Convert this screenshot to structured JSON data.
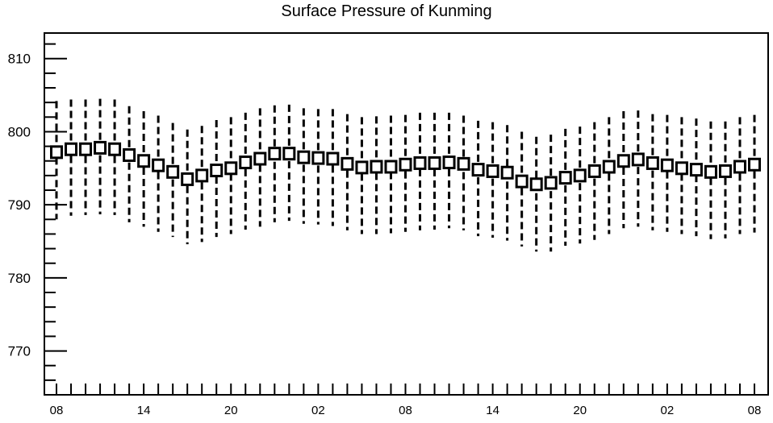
{
  "chart_data": {
    "type": "box",
    "title": "Surface Pressure of Kunming",
    "xlabel": "",
    "ylabel": "",
    "x_tick_labels": [
      "08",
      "14",
      "20",
      "02",
      "08",
      "14",
      "20",
      "02",
      "08"
    ],
    "y_tick_labels": [
      "770",
      "780",
      "790",
      "800",
      "810"
    ],
    "ylim": [
      764,
      813.5
    ],
    "grid": false,
    "series": [
      {
        "median": [
          797.2,
          797.6,
          797.6,
          797.8,
          797.6,
          796.8,
          796.0,
          795.4,
          794.5,
          793.5,
          794.0,
          794.7,
          795.0,
          795.8,
          796.3,
          797.0,
          797.0,
          796.5,
          796.4,
          796.3,
          795.6,
          795.1,
          795.2,
          795.2,
          795.5,
          795.7,
          795.7,
          795.8,
          795.6,
          794.8,
          794.6,
          794.4,
          793.2,
          792.8,
          793.0,
          793.7,
          794.0,
          794.6,
          795.2,
          796.0,
          796.2,
          795.7,
          795.4,
          795.0,
          794.8,
          794.5,
          794.6,
          795.2,
          795.5
        ],
        "whisker_low": [
          788.0,
          788.5,
          788.6,
          788.7,
          788.6,
          787.6,
          787.0,
          786.3,
          785.6,
          784.6,
          784.9,
          785.6,
          786.0,
          786.6,
          787.0,
          787.6,
          787.8,
          787.4,
          787.3,
          787.1,
          786.5,
          786.0,
          786.0,
          786.1,
          786.3,
          786.5,
          786.6,
          786.8,
          786.5,
          785.7,
          785.5,
          785.1,
          784.3,
          783.6,
          783.6,
          784.4,
          784.7,
          785.2,
          786.0,
          786.8,
          787.0,
          786.5,
          786.3,
          786.0,
          785.7,
          785.3,
          785.4,
          786.0,
          786.2
        ],
        "whisker_high": [
          804.2,
          804.4,
          804.4,
          804.5,
          804.4,
          803.5,
          802.8,
          802.2,
          801.2,
          800.3,
          800.8,
          801.6,
          802.0,
          802.6,
          803.2,
          803.6,
          803.7,
          803.2,
          803.1,
          803.1,
          802.4,
          802.0,
          802.1,
          802.2,
          802.3,
          802.6,
          802.6,
          802.6,
          802.2,
          801.5,
          801.3,
          800.9,
          800.0,
          799.3,
          799.6,
          800.4,
          800.7,
          801.3,
          802.0,
          802.8,
          802.9,
          802.4,
          802.3,
          802.0,
          801.8,
          801.4,
          801.4,
          802.0,
          802.3
        ]
      }
    ]
  }
}
